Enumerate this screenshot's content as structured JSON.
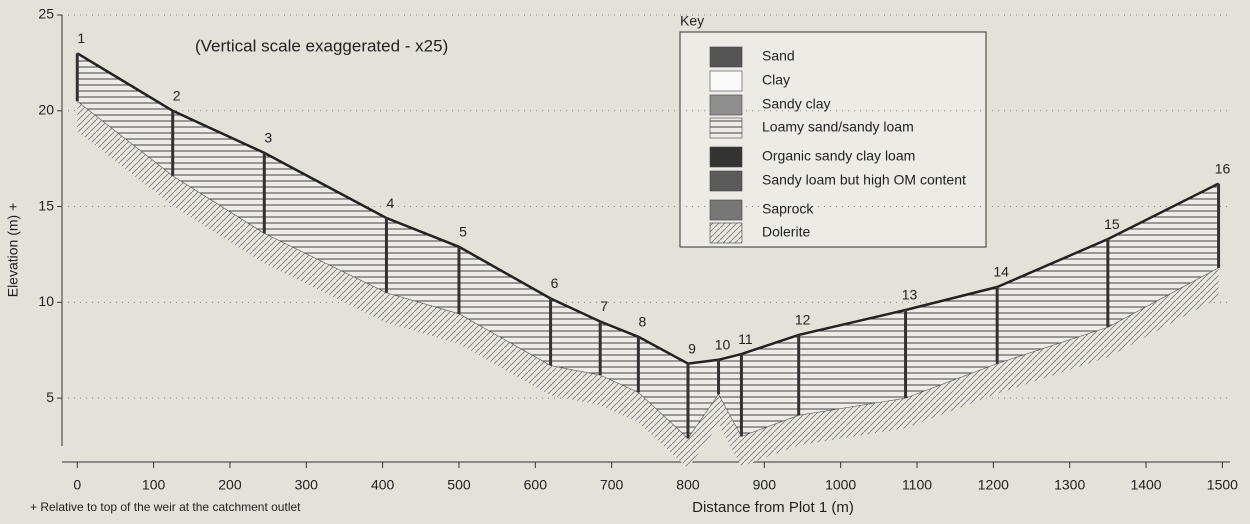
{
  "chart_data": {
    "type": "profile",
    "note": "(Vertical scale exaggerated - x25)",
    "footnote": "+ Relative to top of the weir at the catchment outlet",
    "x_label": "Distance from Plot 1 (m)",
    "y_label": "Elevation (m) +",
    "borehole_labels": [
      "1",
      "2",
      "3",
      "4",
      "5",
      "6",
      "7",
      "8",
      "9",
      "10",
      "11",
      "12",
      "13",
      "14",
      "15",
      "16"
    ],
    "x": [
      0,
      125,
      245,
      405,
      500,
      620,
      685,
      735,
      800,
      840,
      870,
      945,
      1085,
      1205,
      1350,
      1495
    ],
    "top": [
      23.0,
      20.0,
      17.8,
      14.4,
      12.9,
      10.2,
      9.0,
      8.2,
      6.8,
      7.0,
      7.3,
      8.3,
      9.6,
      10.8,
      13.3,
      16.2
    ],
    "bottom": [
      20.5,
      16.6,
      13.6,
      10.5,
      9.4,
      6.7,
      6.2,
      5.3,
      2.9,
      5.2,
      3.0,
      4.1,
      5.0,
      6.8,
      8.7,
      11.8
    ],
    "xlim": [
      -20,
      1510
    ],
    "ylim": [
      2.5,
      25
    ],
    "xticks": [
      0,
      100,
      200,
      300,
      400,
      500,
      600,
      700,
      800,
      900,
      1000,
      1100,
      1200,
      1300,
      1400,
      1500
    ],
    "yticks": [
      5,
      10,
      15,
      20,
      25
    ],
    "grid": true,
    "legend": {
      "title": "Key",
      "items": [
        {
          "name": "Sand",
          "color": "#555"
        },
        {
          "name": "Clay",
          "color": "#fafafa"
        },
        {
          "name": "Sandy clay",
          "color": "#8f8f8f"
        },
        {
          "name": "Loamy sand/sandy loam",
          "color": "#f4f4f4"
        },
        {
          "name": "Organic sandy clay loam",
          "color": "#333"
        },
        {
          "name": "Sandy loam but high OM content",
          "color": "#5a5a5a"
        },
        {
          "name": "Saprock",
          "color": "#777"
        },
        {
          "name": "Dolerite",
          "color": "#d8d8d8"
        }
      ]
    }
  }
}
